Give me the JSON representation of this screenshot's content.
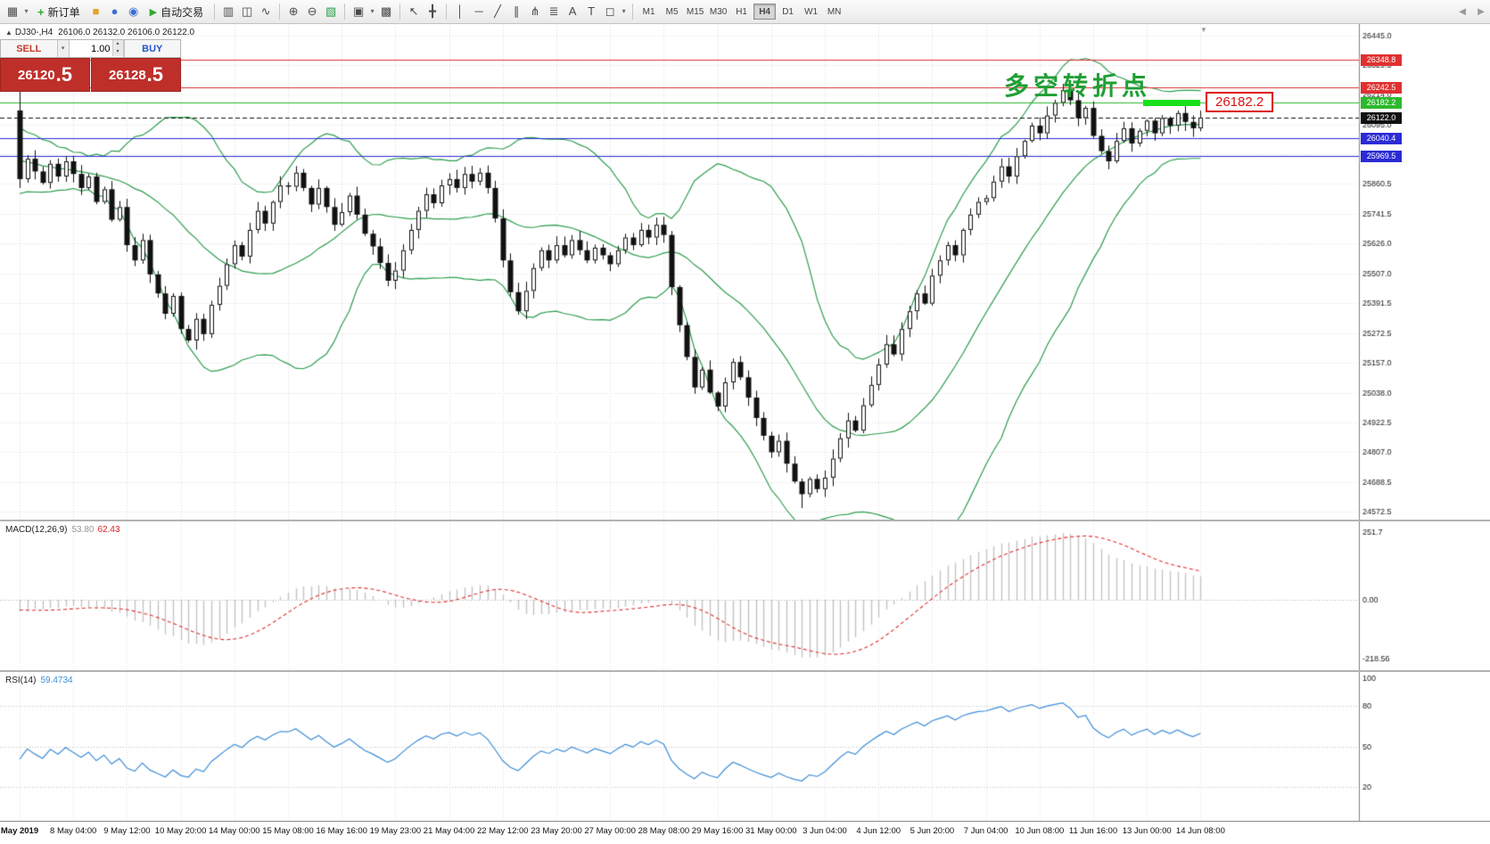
{
  "toolbar": {
    "new_order_label": "新订单",
    "auto_trading_label": "自动交易",
    "timeframes": [
      "M1",
      "M5",
      "M15",
      "M30",
      "H1",
      "H4",
      "D1",
      "W1",
      "MN"
    ],
    "active_timeframe": "H4",
    "glyphs": {
      "new_chart": "▦",
      "profiles": "▤",
      "new_order_plus": "+",
      "metaeditor": "■",
      "community": "●",
      "web": "◉",
      "auto_play": "▶",
      "bars": "▥",
      "candles": "◫",
      "line": "∿",
      "zoom_in": "⊕",
      "zoom_out": "⊖",
      "indicators": "▧",
      "tile": "▣",
      "cascade": "▩",
      "dropdown": "▾",
      "cursor": "↖",
      "crosshair": "╋",
      "vline": "│",
      "hline": "─",
      "trendline": "╱",
      "channel": "∥",
      "fibo": "≣",
      "pitchfork": "⋔",
      "text": "A",
      "label": "T",
      "shapes": "◻",
      "nav_left": "◄",
      "nav_right": "►",
      "spin_up": "▴",
      "spin_down": "▾",
      "shift_marker": "▼"
    }
  },
  "symbol_info": {
    "marker": "▲",
    "symbol": "DJ30-,H4",
    "ohlc": "26106.0 26132.0 26106.0 26122.0"
  },
  "one_click": {
    "sell_label": "SELL",
    "buy_label": "BUY",
    "volume": "1.00",
    "sell_price_main": "26120",
    "sell_price_big": ".5",
    "buy_price_main": "26128",
    "buy_price_big": ".5"
  },
  "annotations": {
    "turning_point": "多空转折点",
    "price_callout": "26182.2"
  },
  "levels": [
    {
      "label": "26348.8",
      "price": 26348.8,
      "color": "#e03131",
      "line": "solid"
    },
    {
      "label": "26242.5",
      "price": 26242.5,
      "color": "#e03131",
      "line": "solid"
    },
    {
      "label": "26182.2",
      "price": 26182.2,
      "color": "#2db92d",
      "line": "solid"
    },
    {
      "label": "26122.0",
      "price": 26122.0,
      "color": "#111111",
      "line": "dashed"
    },
    {
      "label": "26040.4",
      "price": 26040.4,
      "color": "#2b2bd6",
      "line": "solid"
    },
    {
      "label": "25969.5",
      "price": 25969.5,
      "color": "#2b2bd6",
      "line": "solid"
    }
  ],
  "chart_data": {
    "type": "candlestick",
    "title": "DJ30-,H4",
    "timeframe": "H4",
    "price_axis": {
      "min": 24540,
      "max": 26490,
      "labels": [
        26445.0,
        26329.5,
        26214.0,
        26095.0,
        25979.5,
        25860.5,
        25741.5,
        25626.0,
        25507.0,
        25391.5,
        25272.5,
        25157.0,
        25038.0,
        24922.5,
        24807.0,
        24688.5,
        24572.5
      ]
    },
    "first_open": 26150,
    "warmup_closes": [
      26050,
      26080,
      26020,
      26060,
      26000,
      26040,
      25980,
      26010,
      25950,
      25990,
      25930,
      25960,
      25900,
      25940,
      25880,
      25920,
      25870,
      25900,
      25860,
      25890
    ],
    "closes": [
      25880,
      25960,
      25910,
      25865,
      25940,
      25890,
      25950,
      25900,
      25845,
      25890,
      25790,
      25840,
      25720,
      25770,
      25620,
      25560,
      25640,
      25505,
      25430,
      25350,
      25420,
      25290,
      25245,
      25330,
      25270,
      25385,
      25460,
      25545,
      25620,
      25575,
      25680,
      25755,
      25705,
      25790,
      25855,
      25850,
      25905,
      25845,
      25780,
      25845,
      25770,
      25700,
      25750,
      25815,
      25740,
      25665,
      25615,
      25550,
      25480,
      25520,
      25600,
      25680,
      25755,
      25820,
      25785,
      25855,
      25880,
      25845,
      25900,
      25870,
      25905,
      25845,
      25725,
      25560,
      25435,
      25360,
      25440,
      25530,
      25600,
      25560,
      25620,
      25580,
      25640,
      25600,
      25560,
      25610,
      25580,
      25545,
      25600,
      25650,
      25620,
      25680,
      25650,
      25700,
      25660,
      25455,
      25305,
      25180,
      25060,
      25130,
      25040,
      24985,
      25080,
      25160,
      25100,
      25020,
      24940,
      24870,
      24805,
      24850,
      24760,
      24690,
      24640,
      24700,
      24660,
      24705,
      24780,
      24860,
      24930,
      24890,
      24990,
      25070,
      25150,
      25230,
      25190,
      25290,
      25360,
      25430,
      25390,
      25500,
      25560,
      25620,
      25580,
      25680,
      25740,
      25790,
      25805,
      25870,
      25930,
      25890,
      25970,
      26030,
      26090,
      26060,
      26130,
      26180,
      26230,
      26190,
      26120,
      26160,
      26050,
      25990,
      25950,
      26030,
      26080,
      26020,
      26070,
      26110,
      26060,
      26120,
      26090,
      26140,
      26105,
      26080,
      26122
    ],
    "x_labels": [
      {
        "t": "May 2019",
        "i": 0
      },
      {
        "t": "8 May 04:00",
        "i": 7
      },
      {
        "t": "9 May 12:00",
        "i": 14
      },
      {
        "t": "10 May 20:00",
        "i": 21
      },
      {
        "t": "14 May 00:00",
        "i": 28
      },
      {
        "t": "15 May 08:00",
        "i": 35
      },
      {
        "t": "16 May 16:00",
        "i": 42
      },
      {
        "t": "19 May 23:00",
        "i": 49
      },
      {
        "t": "21 May 04:00",
        "i": 56
      },
      {
        "t": "22 May 12:00",
        "i": 63
      },
      {
        "t": "23 May 20:00",
        "i": 70
      },
      {
        "t": "27 May 00:00",
        "i": 77
      },
      {
        "t": "28 May 08:00",
        "i": 84
      },
      {
        "t": "29 May 16:00",
        "i": 91
      },
      {
        "t": "31 May 00:00",
        "i": 98
      },
      {
        "t": "3 Jun 04:00",
        "i": 105
      },
      {
        "t": "4 Jun 12:00",
        "i": 112
      },
      {
        "t": "5 Jun 20:00",
        "i": 119
      },
      {
        "t": "7 Jun 04:00",
        "i": 126
      },
      {
        "t": "10 Jun 08:00",
        "i": 133
      },
      {
        "t": "11 Jun 16:00",
        "i": 140
      },
      {
        "t": "13 Jun 00:00",
        "i": 147
      },
      {
        "t": "14 Jun 08:00",
        "i": 154
      }
    ],
    "indicators": {
      "bollinger": {
        "period": 20,
        "deviation": 2,
        "color": "#2f9e4f"
      },
      "macd": {
        "name": "MACD(12,26,9)",
        "value_main": "53.80",
        "value_signal": "62.43",
        "scale_labels": [
          "251.7",
          "0.00",
          "-218.56"
        ],
        "scale_values": [
          251.7,
          0,
          -218.56
        ],
        "histogram_color": "#c4c4c4",
        "signal_color": "#e03030"
      },
      "rsi": {
        "name": "RSI(14)",
        "value": "59.4734",
        "color": "#3f8ed8",
        "levels": [
          80,
          50,
          20
        ],
        "scale_labels": [
          100,
          80,
          50,
          20
        ]
      }
    }
  }
}
